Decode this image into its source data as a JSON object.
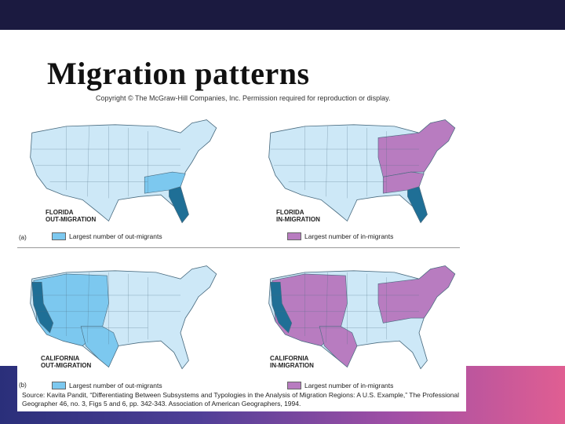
{
  "slide": {
    "title": "Migration patterns"
  },
  "figure": {
    "copyright": "Copyright © The McGraw-Hill Companies, Inc. Permission required for reproduction or display.",
    "panel_a_letter": "(a)",
    "panel_b_letter": "(b)",
    "maps": [
      {
        "label_line1": "FLORIDA",
        "label_line2": "OUT-MIGRATION",
        "legend": "Largest number of out-migrants",
        "highlight_color": "#7cc8ef",
        "source_color": "#1f6f96"
      },
      {
        "label_line1": "FLORIDA",
        "label_line2": "IN-MIGRATION",
        "legend": "Largest number of in-migrants",
        "highlight_color": "#b87cc0",
        "source_color": "#1f6f96"
      },
      {
        "label_line1": "CALIFORNIA",
        "label_line2": "OUT-MIGRATION",
        "legend": "Largest number of out-migrants",
        "highlight_color": "#7cc8ef",
        "source_color": "#1f6f96"
      },
      {
        "label_line1": "CALIFORNIA",
        "label_line2": "IN-MIGRATION",
        "legend": "Largest number of in-migrants",
        "highlight_color": "#b87cc0",
        "source_color": "#1f6f96"
      }
    ],
    "source": "Source: Kavita Pandit, “Differentiating Between Subsystems and Typologies in the Analysis of Migration Regions: A U.S. Example,” The Professional Geographer 46, no. 3, Figs 5 and 6, pp. 342-343. Association of American Geographers, 1994.",
    "base_color": "#cde8f7",
    "border_color": "#4a6c80"
  }
}
